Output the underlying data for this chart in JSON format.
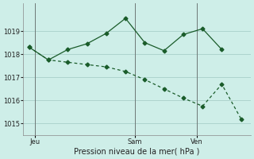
{
  "xlabel": "Pression niveau de la mer( hPa )",
  "bg_color": "#ceeee8",
  "grid_color": "#aed4ce",
  "line_color": "#1a5c2a",
  "line1_x": [
    0,
    1,
    2,
    3,
    4,
    5,
    6,
    7,
    8,
    9,
    10
  ],
  "line1_y": [
    1018.3,
    1017.75,
    1018.2,
    1018.45,
    1018.9,
    1019.55,
    1018.5,
    1018.15,
    1018.85,
    1019.1,
    1018.2
  ],
  "line2_x": [
    0,
    1,
    2,
    3,
    4,
    5,
    6,
    7,
    8,
    9,
    10,
    11
  ],
  "line2_y": [
    1018.3,
    1017.75,
    1017.65,
    1017.55,
    1017.45,
    1017.25,
    1016.9,
    1016.5,
    1016.1,
    1015.75,
    1016.7,
    1015.2
  ],
  "day_positions": [
    0.3,
    5.5,
    8.7
  ],
  "day_labels": [
    "Jeu",
    "Sam",
    "Ven"
  ],
  "vline_positions": [
    0.3,
    5.5,
    8.7
  ],
  "ylim": [
    1014.5,
    1020.2
  ],
  "yticks": [
    1015,
    1016,
    1017,
    1018,
    1019
  ],
  "xlim": [
    -0.3,
    11.5
  ],
  "xlabel_fontsize": 7,
  "tick_fontsize": 6
}
